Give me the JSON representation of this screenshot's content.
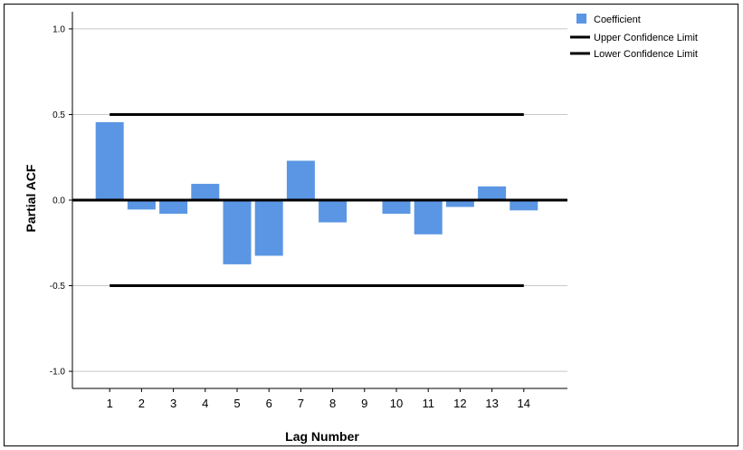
{
  "chart_data": {
    "type": "bar",
    "title": "",
    "xlabel": "Lag Number",
    "ylabel": "Partial ACF",
    "ylim": [
      -1.1,
      1.1
    ],
    "yticks": [
      1.0,
      0.5,
      0.0,
      -0.5,
      -1.0
    ],
    "ytick_labels": [
      "1.0",
      "0.5",
      "0.0",
      "-0.5",
      "-1.0"
    ],
    "categories": [
      "1",
      "2",
      "3",
      "4",
      "5",
      "6",
      "7",
      "8",
      "9",
      "10",
      "11",
      "12",
      "13",
      "14"
    ],
    "series": [
      {
        "name": "Coefficient",
        "color": "#5a96e3",
        "values": [
          0.455,
          -0.055,
          -0.08,
          0.095,
          -0.375,
          -0.325,
          0.23,
          -0.13,
          0.005,
          -0.08,
          -0.2,
          -0.04,
          0.08,
          -0.06
        ]
      }
    ],
    "confidence_limits": {
      "upper": {
        "name": "Upper Confidence Limit",
        "value": 0.5,
        "color": "#000000"
      },
      "lower": {
        "name": "Lower Confidence Limit",
        "value": -0.5,
        "color": "#000000"
      }
    },
    "grid": true,
    "legend_position": "top-right"
  }
}
